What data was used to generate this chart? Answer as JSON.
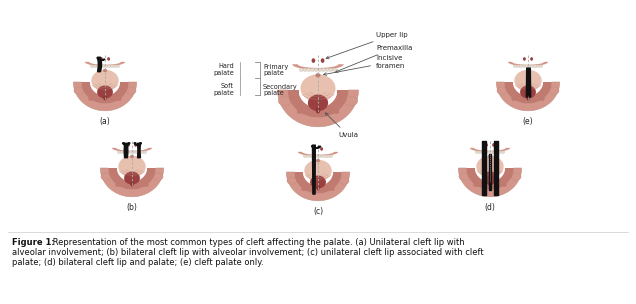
{
  "background_color": "#ffffff",
  "figure_caption_bold": "Figure 1:",
  "figure_caption_normal": " Representation of the most common types of cleft affecting the palate. (a) Unilateral cleft lip with\nalveolar involvement; (b) bilateral cleft lip with alveolar involvement; (c) unilateral cleft lip associated with cleft\npalate; (d) bilateral cleft lip and palate; (e) cleft palate only.",
  "colors": {
    "outer_arch": "#d4968a",
    "mid_arch": "#c07a70",
    "inner_palate": "#d4a090",
    "hard_palate_light": "#e8c0b0",
    "soft_palate": "#9b4040",
    "uvula": "#8b3535",
    "cleft_black": "#111111",
    "teeth": "#e8ddd0",
    "teeth_edge": "#c8bdb0",
    "dashed": "#aaaaaa",
    "text": "#222222",
    "arrow": "#555555",
    "background": "#ffffff",
    "border": "#c09080"
  },
  "figsize": [
    6.36,
    3.04
  ],
  "dpi": 100,
  "anatomy_labels": {
    "upper_lip": "Upper lip",
    "premaxilla": "Premaxilla",
    "incisive_foramen": "Incisive\nforamen",
    "uvula": "Uvula",
    "hard_palate": "Hard\npalate",
    "primary_palate": "Primary\npalate",
    "secondary_palate": "Secondary\npalate",
    "soft_palate": "Soft\npalate"
  }
}
